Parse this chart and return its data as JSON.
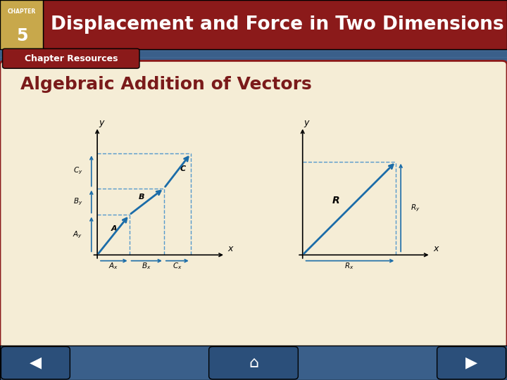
{
  "title": "Displacement and Force in Two Dimensions",
  "subtitle": "Chapter Resources",
  "section_title": "Algebraic Addition of Vectors",
  "bg_color_dark_red": "#8B1A1A",
  "bg_color_blue_main": "#3A5F8A",
  "bg_color_cream": "#F5EDD6",
  "header_gold": "#C8A84B",
  "arrow_color": "#1B6CA8",
  "dashed_color": "#5599CC",
  "section_title_color": "#7A1A1A",
  "nav_bg": "#2B4F7A"
}
